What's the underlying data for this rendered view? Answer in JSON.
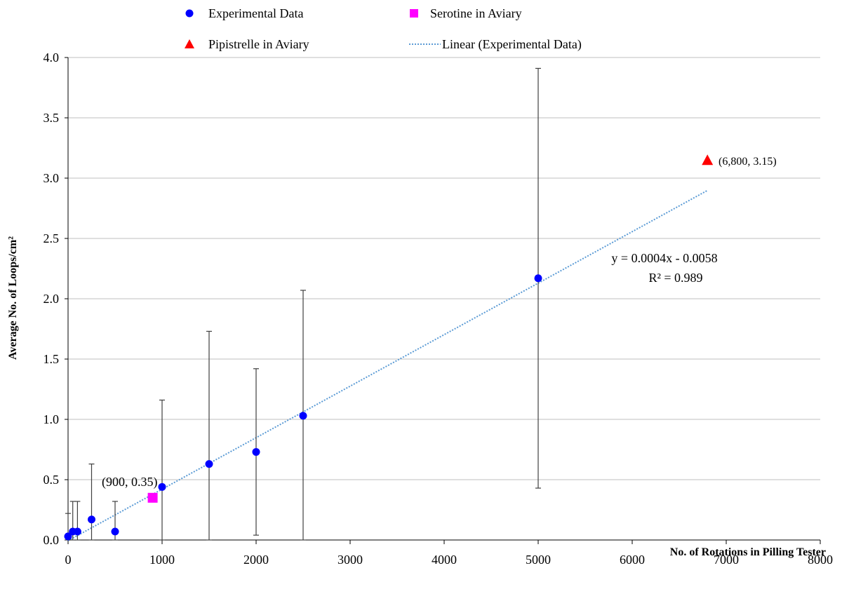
{
  "chart_data": {
    "type": "scatter",
    "xlabel": "No. of Rotations in Pilling Tester",
    "ylabel": "Average No. of Loops/cm²",
    "xlim": [
      0,
      8000
    ],
    "ylim": [
      0,
      4.0
    ],
    "xticks": [
      "0",
      "1000",
      "2000",
      "3000",
      "4000",
      "5000",
      "6000",
      "7000",
      "8000"
    ],
    "yticks": [
      "0.0",
      "0.5",
      "1.0",
      "1.5",
      "2.0",
      "2.5",
      "3.0",
      "3.5",
      "4.0"
    ],
    "grid": "horizontal",
    "legend": {
      "placement": "top",
      "entries": [
        {
          "label": "Experimental Data",
          "marker": "circle",
          "color": "#0000ff"
        },
        {
          "label": "Serotine in Aviary",
          "marker": "square",
          "color": "#ff00ff"
        },
        {
          "label": "Pipistrelle in Aviary",
          "marker": "triangle",
          "color": "#ff0000"
        },
        {
          "label": "Linear (Experimental Data)",
          "marker": "dotted-line",
          "color": "#5b9bd5"
        }
      ]
    },
    "series": [
      {
        "name": "Experimental Data",
        "marker": "circle",
        "color": "#0000ff",
        "points": [
          {
            "x": 0,
            "y": 0.03,
            "err_low": 0.0,
            "err_high": 0.22
          },
          {
            "x": 50,
            "y": 0.07,
            "err_low": 0.0,
            "err_high": 0.32
          },
          {
            "x": 100,
            "y": 0.07,
            "err_low": 0.0,
            "err_high": 0.32
          },
          {
            "x": 250,
            "y": 0.17,
            "err_low": 0.0,
            "err_high": 0.63
          },
          {
            "x": 500,
            "y": 0.07,
            "err_low": 0.0,
            "err_high": 0.32
          },
          {
            "x": 1000,
            "y": 0.44,
            "err_low": 0.0,
            "err_high": 1.16
          },
          {
            "x": 1500,
            "y": 0.63,
            "err_low": 0.0,
            "err_high": 1.73
          },
          {
            "x": 2000,
            "y": 0.73,
            "err_low": 0.04,
            "err_high": 1.42
          },
          {
            "x": 2500,
            "y": 1.03,
            "err_low": 0.0,
            "err_high": 2.07
          },
          {
            "x": 5000,
            "y": 2.17,
            "err_low": 0.43,
            "err_high": 3.91
          }
        ]
      },
      {
        "name": "Serotine in Aviary",
        "marker": "square",
        "color": "#ff00ff",
        "points": [
          {
            "x": 900,
            "y": 0.35
          }
        ]
      },
      {
        "name": "Pipistrelle in Aviary",
        "marker": "triangle",
        "color": "#ff0000",
        "points": [
          {
            "x": 6800,
            "y": 3.15
          }
        ]
      }
    ],
    "trendline": {
      "name": "Linear (Experimental Data)",
      "color": "#5b9bd5",
      "slope": 0.000427,
      "intercept": -0.0058,
      "x_range": [
        0,
        6800
      ],
      "equation": "y = 0.0004x - 0.0058",
      "r2": "R² = 0.989"
    },
    "annotations": {
      "serotine": "(900, 0.35)",
      "pipistrelle": "(6,800, 3.15)"
    }
  }
}
